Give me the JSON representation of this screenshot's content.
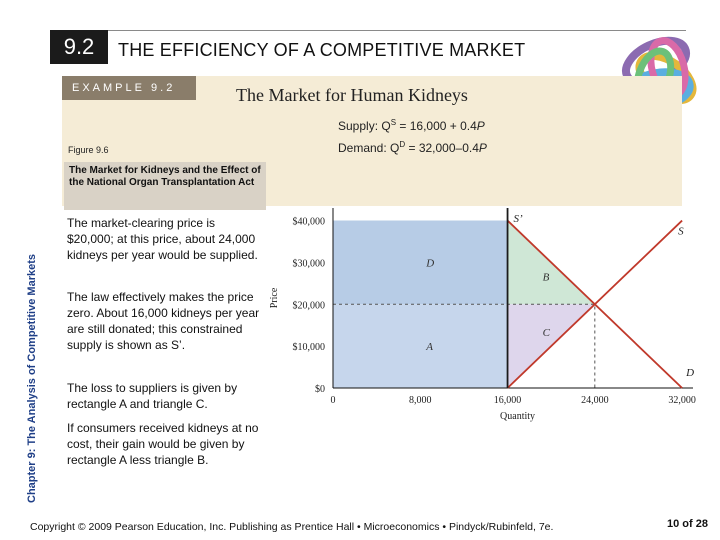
{
  "header": {
    "section_number": "9.2",
    "title": "THE EFFICIENCY OF A COMPETITIVE MARKET"
  },
  "example": {
    "label": "EXAMPLE 9.2",
    "title": "The Market for Human Kidneys",
    "supply_equation": {
      "prefix": "Supply: Q",
      "superscript": "S",
      "rhs": " = 16,000 +  0.4",
      "var": "P"
    },
    "demand_equation": {
      "prefix": "Demand: Q",
      "superscript": "D",
      "rhs": " = 32,000–0.4",
      "var": "P"
    }
  },
  "sidebar_label": "Chapter 9:  The Analysis of Competitive Markets",
  "figure": {
    "label": "Figure 9.6",
    "caption": "The Market for Kidneys and the Effect of the National Organ Transplantation Act"
  },
  "paragraphs": [
    "The market-clearing price is $20,000; at this price, about 24,000 kidneys per year would be supplied.",
    "The law effectively makes the price zero. About 16,000 kidneys per year are still donated; this constrained supply is shown as S’.",
    "The loss to suppliers is given by rectangle A and triangle C.",
    "If consumers received kidneys at no cost, their gain would be given by rectangle A less triangle B."
  ],
  "chart_data": {
    "type": "line",
    "ylabel": "Price",
    "xlabel": "Quantity",
    "x_ticks": [
      "0",
      "8,000",
      "16,000",
      "24,000",
      "32,000"
    ],
    "x_tick_values": [
      0,
      8000,
      16000,
      24000,
      32000
    ],
    "y_ticks": [
      "$40,000",
      "$30,000",
      "$20,000",
      "$10,000",
      "$0"
    ],
    "y_tick_values": [
      40000,
      30000,
      20000,
      10000,
      0
    ],
    "xlim": [
      0,
      33000
    ],
    "ylim": [
      0,
      43000
    ],
    "series": [
      {
        "name": "S",
        "points": [
          [
            16000,
            0
          ],
          [
            32000,
            40000
          ]
        ],
        "color": "#c0392b"
      },
      {
        "name": "D",
        "points": [
          [
            16000,
            40000
          ],
          [
            32000,
            0
          ]
        ],
        "color": "#c0392b"
      },
      {
        "name": "S’",
        "points": [
          [
            16000,
            0
          ],
          [
            16000,
            43000
          ]
        ],
        "color": "#1b1b1b"
      }
    ],
    "regions": [
      {
        "label": "D",
        "polygon": [
          [
            0,
            40000
          ],
          [
            16000,
            40000
          ],
          [
            16000,
            20000
          ],
          [
            0,
            20000
          ]
        ],
        "color": "#b7cce6"
      },
      {
        "label": "A",
        "polygon": [
          [
            0,
            20000
          ],
          [
            16000,
            20000
          ],
          [
            16000,
            0
          ],
          [
            0,
            0
          ]
        ],
        "color": "#c6d6ec"
      },
      {
        "label": "B",
        "polygon": [
          [
            16000,
            40000
          ],
          [
            24000,
            20000
          ],
          [
            16000,
            20000
          ]
        ],
        "color": "#cfe7d6"
      },
      {
        "label": "C",
        "polygon": [
          [
            16000,
            20000
          ],
          [
            24000,
            20000
          ],
          [
            16000,
            0
          ]
        ],
        "color": "#ded6ec"
      }
    ],
    "guides": [
      [
        0,
        20000
      ],
      [
        24000,
        20000
      ],
      [
        24000,
        0
      ]
    ]
  },
  "footer": {
    "text": "Copyright © 2009 Pearson Education, Inc. Publishing as Prentice Hall • Microeconomics • Pindyck/Rubinfeld, 7e.",
    "page": "10 of 28"
  }
}
